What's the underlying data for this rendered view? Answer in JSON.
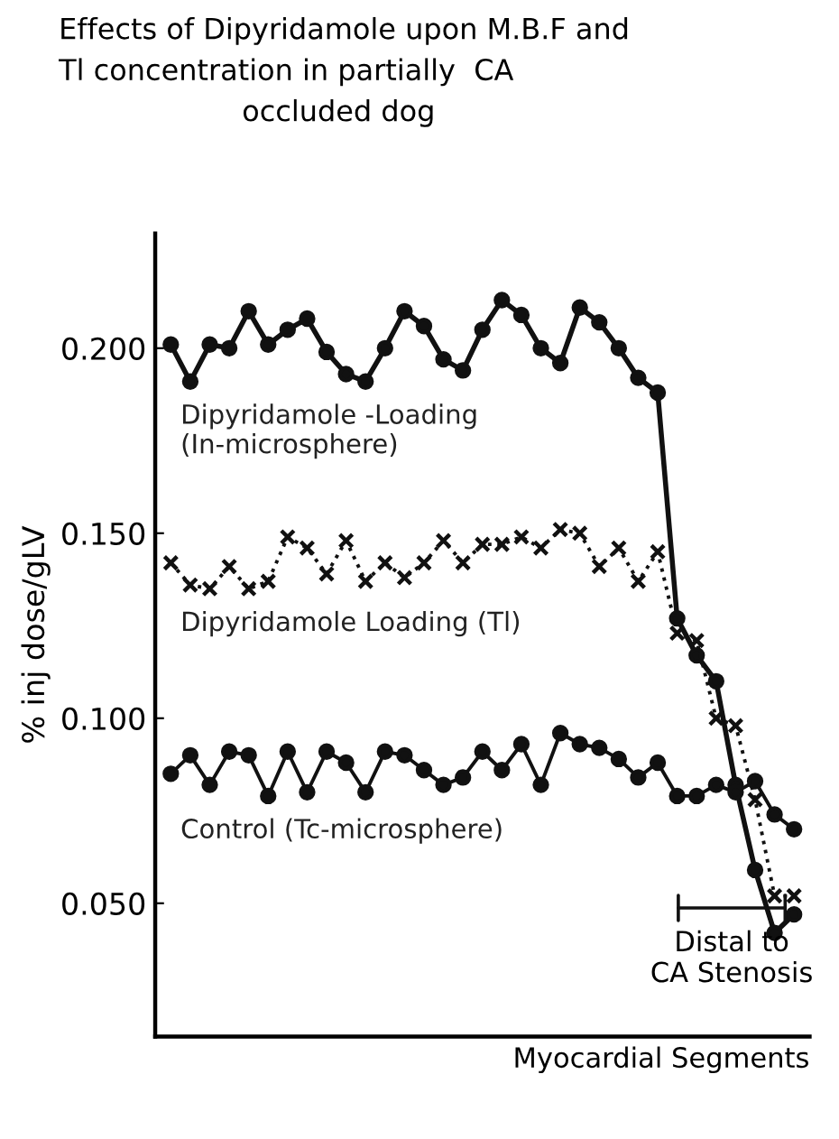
{
  "chart_data": {
    "type": "line",
    "title": "Effects of Dipyridamole upon M.B.F and\nTl concentration in partially  CA\n                    occluded dog",
    "xlabel": "Myocardial Segments",
    "ylabel": "% inj dose/gLV",
    "categories": [
      null,
      null,
      null,
      null,
      null,
      null,
      null,
      null,
      null,
      null,
      null,
      null,
      null,
      null,
      null,
      null,
      null,
      null,
      null,
      null,
      null,
      null,
      null,
      null,
      null,
      null,
      null,
      null,
      null,
      null,
      null,
      null,
      null
    ],
    "series": [
      {
        "name": "Dipyridamole -Loading\n(In-microsphere)",
        "color": "#111111",
        "marker": "circle",
        "line_style": "solid",
        "values": [
          0.201,
          0.191,
          0.201,
          0.2,
          0.21,
          0.201,
          0.205,
          0.208,
          0.199,
          0.193,
          0.191,
          0.2,
          0.21,
          0.206,
          0.197,
          0.194,
          0.205,
          0.213,
          0.209,
          0.2,
          0.196,
          0.211,
          0.207,
          0.2,
          0.192,
          0.188,
          0.127,
          0.117,
          0.11,
          0.082,
          0.059,
          0.042,
          0.047
        ]
      },
      {
        "name": "Dipyridamole Loading (Tl)",
        "color": "#111111",
        "marker": "cross",
        "line_style": "dotted",
        "values": [
          0.142,
          0.136,
          0.135,
          0.141,
          0.135,
          0.137,
          0.149,
          0.146,
          0.139,
          0.148,
          0.137,
          0.142,
          0.138,
          0.142,
          0.148,
          0.142,
          0.147,
          0.147,
          0.149,
          0.146,
          0.151,
          0.15,
          0.141,
          0.146,
          0.137,
          0.145,
          0.123,
          0.121,
          0.1,
          0.098,
          0.078,
          0.052,
          0.052
        ]
      },
      {
        "name": "Control (Tc-microsphere)",
        "color": "#111111",
        "marker": "circle",
        "line_style": "solid",
        "values": [
          0.085,
          0.09,
          0.082,
          0.091,
          0.09,
          0.079,
          0.091,
          0.08,
          0.091,
          0.088,
          0.08,
          0.091,
          0.09,
          0.086,
          0.082,
          0.084,
          0.091,
          0.086,
          0.093,
          0.082,
          0.096,
          0.093,
          0.092,
          0.089,
          0.084,
          0.088,
          0.079,
          0.079,
          0.082,
          0.08,
          0.083,
          0.074,
          0.07
        ]
      }
    ],
    "annotations": [
      "Distal to\nCA Stenosis"
    ],
    "ylim": [
      0.014,
      0.231
    ],
    "yticks": [
      {
        "value": 0.05,
        "label": "0.050"
      },
      {
        "value": 0.1,
        "label": "0.100"
      },
      {
        "value": 0.15,
        "label": "0.150"
      },
      {
        "value": 0.2,
        "label": "0.200"
      }
    ],
    "tick_labels": "y",
    "grid": false,
    "legend": false
  }
}
